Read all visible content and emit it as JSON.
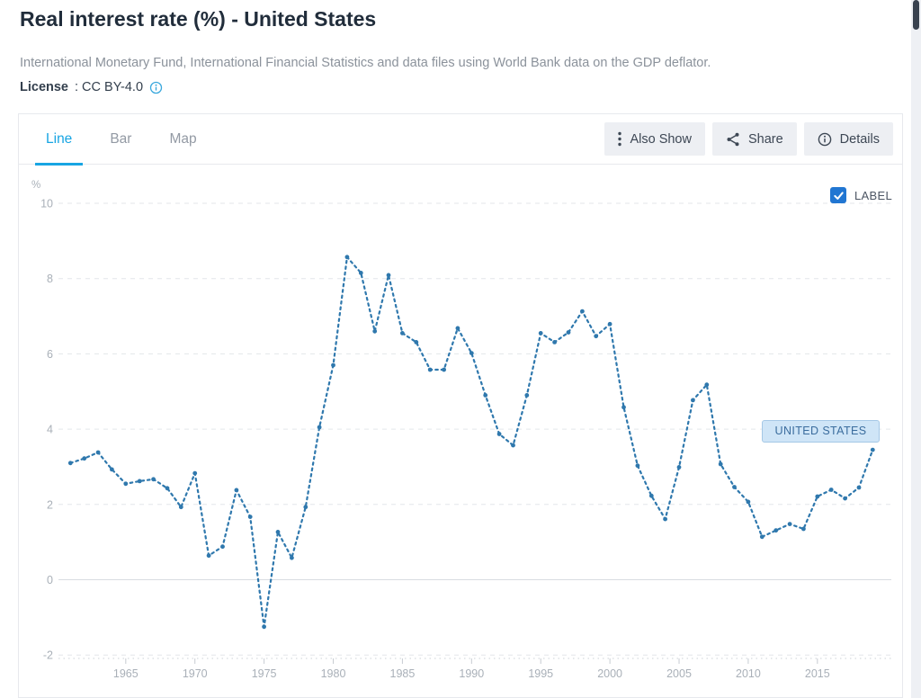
{
  "page": {
    "title": "Real interest rate (%) - United States",
    "subtitle": "International Monetary Fund, International Financial Statistics and data files using World Bank data on the GDP deflator.",
    "license_label": "License",
    "license_value": ": CC BY-4.0"
  },
  "tabs": [
    {
      "label": "Line",
      "active": true
    },
    {
      "label": "Bar",
      "active": false
    },
    {
      "label": "Map",
      "active": false
    }
  ],
  "toolbar": {
    "also_show": "Also Show",
    "share": "Share",
    "details": "Details"
  },
  "legend": {
    "label_checkbox": "LABEL",
    "checked": true
  },
  "series_label": "UNITED STATES",
  "colors": {
    "line": "#2f78ad",
    "tab_active": "#18a5e3",
    "checkbox": "#2176d2",
    "chip_bg": "#cfe5f7",
    "chip_border": "#a5c8e6",
    "chip_text": "#3b6d9e",
    "grid": "#e3e6ea",
    "zero_line": "#d9dce1",
    "axis_text": "#a9b0b8"
  },
  "chart_data": {
    "type": "line",
    "title": "Real interest rate (%) - United States",
    "unit": "%",
    "ylabel": "%",
    "xlabel": "",
    "ylim": [
      -2,
      10
    ],
    "ytick_step": 2,
    "xticks": [
      1965,
      1970,
      1975,
      1980,
      1985,
      1990,
      1995,
      2000,
      2005,
      2010,
      2015
    ],
    "grid": "horizontal dashed",
    "legend_position": "top-right",
    "line_style": "dashed with round point markers",
    "x": [
      1961,
      1962,
      1963,
      1964,
      1965,
      1966,
      1967,
      1968,
      1969,
      1970,
      1971,
      1972,
      1973,
      1974,
      1975,
      1976,
      1977,
      1978,
      1979,
      1980,
      1981,
      1982,
      1983,
      1984,
      1985,
      1986,
      1987,
      1988,
      1989,
      1990,
      1991,
      1992,
      1993,
      1994,
      1995,
      1996,
      1997,
      1998,
      1999,
      2000,
      2001,
      2002,
      2003,
      2004,
      2005,
      2006,
      2007,
      2008,
      2009,
      2010,
      2011,
      2012,
      2013,
      2014,
      2015,
      2016,
      2017,
      2018,
      2019
    ],
    "series": [
      {
        "name": "United States",
        "values": [
          3.1,
          3.22,
          3.38,
          2.93,
          2.55,
          2.62,
          2.67,
          2.43,
          1.93,
          2.83,
          0.64,
          0.88,
          2.38,
          1.67,
          -1.25,
          1.27,
          0.58,
          1.93,
          4.05,
          5.7,
          8.57,
          8.15,
          6.6,
          8.09,
          6.55,
          6.31,
          5.58,
          5.58,
          6.68,
          6.02,
          4.9,
          3.87,
          3.57,
          4.9,
          6.55,
          6.31,
          6.57,
          7.13,
          6.47,
          6.79,
          4.58,
          3.03,
          2.23,
          1.61,
          2.99,
          4.77,
          5.18,
          3.07,
          2.46,
          2.07,
          1.14,
          1.31,
          1.48,
          1.35,
          2.21,
          2.39,
          2.16,
          2.45,
          3.45
        ]
      }
    ]
  }
}
